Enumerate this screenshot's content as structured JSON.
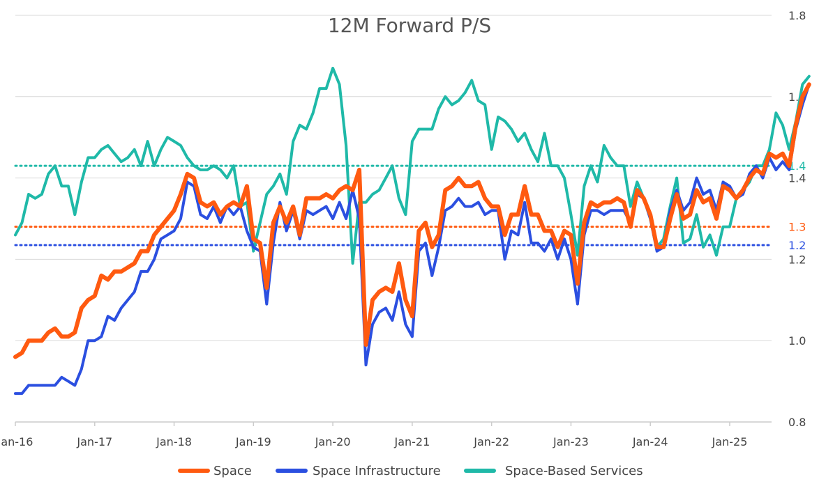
{
  "chart_data": {
    "type": "line",
    "title": "12M Forward P/S",
    "xlabel": "",
    "ylabel": "",
    "ylim": [
      0.8,
      1.8
    ],
    "yticks": [
      0.8,
      1.0,
      1.2,
      1.4,
      1.6,
      1.8
    ],
    "ytick_labels": [
      "0.8",
      "1.0",
      "1.2",
      "1.4",
      "1.6",
      "1.8"
    ],
    "y_axis_side": "right",
    "grid": true,
    "x_start": "Jan-16",
    "x_end": "Aug-25",
    "x_tick_labels": [
      "Jan-16",
      "Jan-17",
      "Jan-18",
      "Jan-19",
      "Jan-20",
      "Jan-21",
      "Jan-22",
      "Jan-23",
      "Jan-24",
      "Jan-25"
    ],
    "legend_position": "bottom",
    "series": [
      {
        "name": "Space",
        "color": "#ff5a10",
        "width": 6,
        "values": [
          0.96,
          0.97,
          1.0,
          1.0,
          1.0,
          1.02,
          1.03,
          1.01,
          1.01,
          1.02,
          1.08,
          1.1,
          1.11,
          1.16,
          1.15,
          1.17,
          1.17,
          1.18,
          1.19,
          1.22,
          1.22,
          1.26,
          1.28,
          1.3,
          1.32,
          1.36,
          1.41,
          1.4,
          1.34,
          1.33,
          1.34,
          1.31,
          1.33,
          1.34,
          1.33,
          1.38,
          1.25,
          1.24,
          1.13,
          1.29,
          1.33,
          1.29,
          1.33,
          1.26,
          1.35,
          1.35,
          1.35,
          1.36,
          1.35,
          1.37,
          1.38,
          1.37,
          1.42,
          0.99,
          1.1,
          1.12,
          1.13,
          1.12,
          1.19,
          1.1,
          1.06,
          1.27,
          1.29,
          1.23,
          1.26,
          1.37,
          1.38,
          1.4,
          1.38,
          1.38,
          1.39,
          1.35,
          1.33,
          1.33,
          1.26,
          1.31,
          1.31,
          1.38,
          1.31,
          1.31,
          1.27,
          1.27,
          1.23,
          1.27,
          1.26,
          1.14,
          1.29,
          1.34,
          1.33,
          1.34,
          1.34,
          1.35,
          1.34,
          1.28,
          1.37,
          1.35,
          1.31,
          1.23,
          1.23,
          1.3,
          1.36,
          1.3,
          1.31,
          1.37,
          1.34,
          1.35,
          1.3,
          1.38,
          1.37,
          1.35,
          1.37,
          1.4,
          1.42,
          1.41,
          1.46,
          1.45,
          1.46,
          1.43,
          1.53,
          1.6,
          1.63
        ]
      },
      {
        "name": "Space Infrastructure",
        "color": "#2b4fe0",
        "width": 4,
        "values": [
          0.87,
          0.87,
          0.89,
          0.89,
          0.89,
          0.89,
          0.89,
          0.91,
          0.9,
          0.89,
          0.93,
          1.0,
          1.0,
          1.01,
          1.06,
          1.05,
          1.08,
          1.1,
          1.12,
          1.17,
          1.17,
          1.2,
          1.25,
          1.26,
          1.27,
          1.3,
          1.39,
          1.38,
          1.31,
          1.3,
          1.33,
          1.29,
          1.33,
          1.31,
          1.33,
          1.27,
          1.23,
          1.22,
          1.09,
          1.24,
          1.34,
          1.27,
          1.32,
          1.25,
          1.32,
          1.31,
          1.32,
          1.33,
          1.3,
          1.34,
          1.3,
          1.37,
          1.3,
          0.94,
          1.04,
          1.07,
          1.08,
          1.05,
          1.12,
          1.04,
          1.01,
          1.22,
          1.24,
          1.16,
          1.23,
          1.32,
          1.33,
          1.35,
          1.33,
          1.33,
          1.34,
          1.31,
          1.32,
          1.32,
          1.2,
          1.27,
          1.26,
          1.34,
          1.24,
          1.24,
          1.22,
          1.25,
          1.2,
          1.25,
          1.2,
          1.09,
          1.26,
          1.32,
          1.32,
          1.31,
          1.32,
          1.32,
          1.32,
          1.29,
          1.36,
          1.35,
          1.3,
          1.22,
          1.23,
          1.32,
          1.37,
          1.32,
          1.34,
          1.4,
          1.36,
          1.37,
          1.32,
          1.39,
          1.38,
          1.35,
          1.36,
          1.41,
          1.43,
          1.4,
          1.45,
          1.42,
          1.44,
          1.42,
          1.52,
          1.58,
          1.63
        ]
      },
      {
        "name": "Space-Based Services",
        "color": "#1fb9a8",
        "width": 4,
        "values": [
          1.26,
          1.29,
          1.36,
          1.35,
          1.36,
          1.41,
          1.43,
          1.38,
          1.38,
          1.31,
          1.39,
          1.45,
          1.45,
          1.47,
          1.48,
          1.46,
          1.44,
          1.45,
          1.47,
          1.43,
          1.49,
          1.43,
          1.47,
          1.5,
          1.49,
          1.48,
          1.45,
          1.43,
          1.42,
          1.42,
          1.43,
          1.42,
          1.4,
          1.43,
          1.33,
          1.34,
          1.22,
          1.29,
          1.36,
          1.38,
          1.41,
          1.36,
          1.49,
          1.53,
          1.52,
          1.56,
          1.62,
          1.62,
          1.67,
          1.63,
          1.48,
          1.19,
          1.34,
          1.34,
          1.36,
          1.37,
          1.4,
          1.43,
          1.35,
          1.31,
          1.49,
          1.52,
          1.52,
          1.52,
          1.57,
          1.6,
          1.58,
          1.59,
          1.61,
          1.64,
          1.59,
          1.58,
          1.47,
          1.55,
          1.54,
          1.52,
          1.49,
          1.51,
          1.47,
          1.44,
          1.51,
          1.43,
          1.43,
          1.4,
          1.31,
          1.21,
          1.38,
          1.43,
          1.39,
          1.48,
          1.45,
          1.43,
          1.43,
          1.33,
          1.39,
          1.35,
          1.3,
          1.23,
          1.25,
          1.33,
          1.4,
          1.24,
          1.25,
          1.31,
          1.23,
          1.26,
          1.21,
          1.28,
          1.28,
          1.35,
          1.37,
          1.39,
          1.43,
          1.43,
          1.47,
          1.56,
          1.53,
          1.47,
          1.54,
          1.63,
          1.65
        ]
      }
    ],
    "reference_lines": [
      {
        "value": 1.43,
        "label": "1.4",
        "color": "#1fb9a8"
      },
      {
        "value": 1.28,
        "label": "1.3",
        "color": "#ff5a10"
      },
      {
        "value": 1.235,
        "label": "1.2",
        "color": "#2b4fe0"
      }
    ]
  }
}
